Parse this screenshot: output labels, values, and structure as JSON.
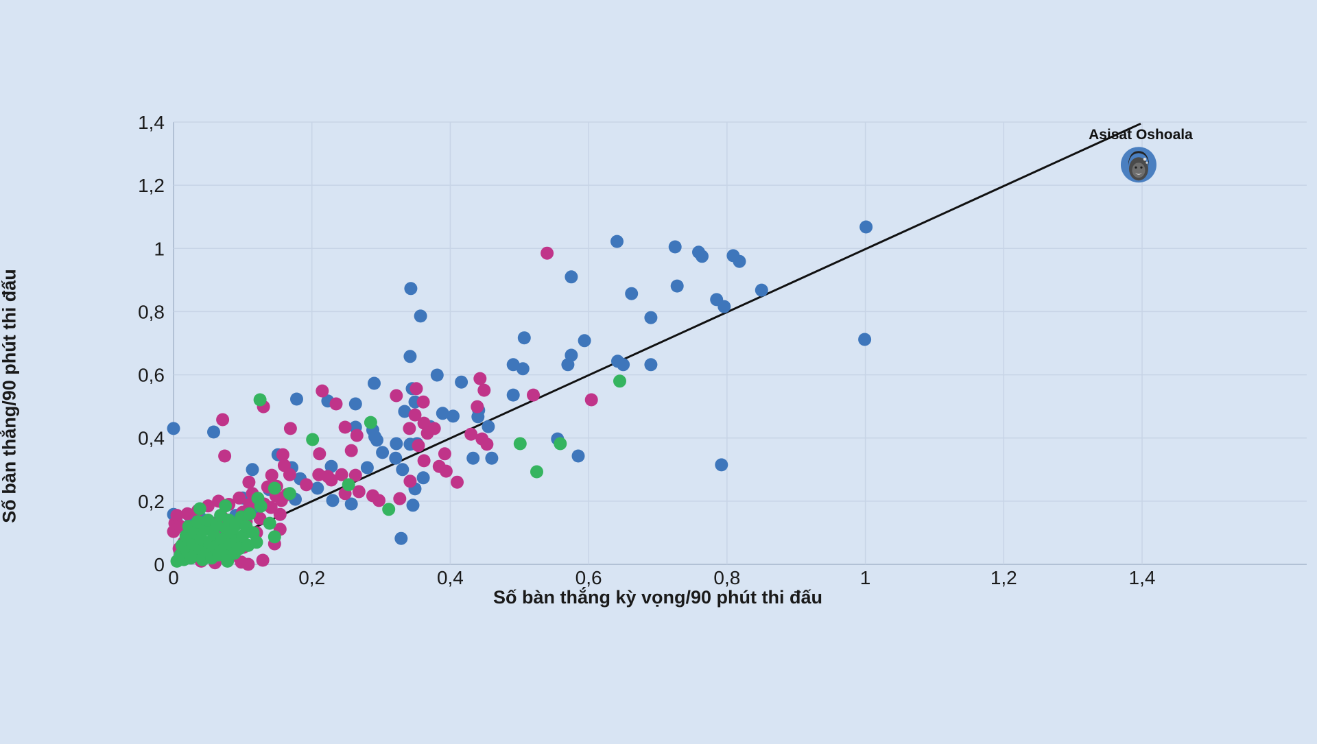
{
  "chart_data": {
    "type": "scatter",
    "title": "",
    "xlabel": "Số bàn thắng kỳ vọng/90 phút thi đấu",
    "ylabel": "Số bàn thắng/90 phút thi đấu",
    "xlim": [
      0,
      1.4
    ],
    "ylim": [
      0,
      1.4
    ],
    "grid": true,
    "background_color": "#d8e4f3",
    "gridline_color": "#c7d4e6",
    "baseline_color": "#a5b5cb",
    "text_color": "#1a1a1a",
    "ticks": {
      "values": [
        0,
        0.2,
        0.4,
        0.6,
        0.8,
        1.0,
        1.2,
        1.4
      ],
      "labels": [
        "0",
        "0,2",
        "0,4",
        "0,6",
        "0,8",
        "1",
        "1,2",
        "1,4"
      ]
    },
    "reference_line": {
      "from": [
        0,
        0
      ],
      "to": [
        1.398,
        1.395
      ],
      "color": "#111111",
      "width": 3
    },
    "annotation": {
      "label": "Asisat Oshoala",
      "x": 1.395,
      "y": 1.265,
      "marker": "circular-photo-avatar",
      "avatar_ring_color": "#4a7fc0"
    },
    "point_radius": 9.5,
    "series": [
      {
        "name": "blue",
        "color": "#3e76bb",
        "points": [
          [
            0.0,
            0.43
          ],
          [
            0.0,
            0.158
          ],
          [
            0.004,
            0.136
          ],
          [
            0.023,
            0.154
          ],
          [
            0.04,
            0.145
          ],
          [
            0.058,
            0.13
          ],
          [
            0.058,
            0.419
          ],
          [
            0.06,
            0.065
          ],
          [
            0.07,
            0.1
          ],
          [
            0.09,
            0.155
          ],
          [
            0.1,
            0.21
          ],
          [
            0.114,
            0.3
          ],
          [
            0.115,
            0.175
          ],
          [
            0.138,
            0.237
          ],
          [
            0.151,
            0.347
          ],
          [
            0.171,
            0.306
          ],
          [
            0.176,
            0.206
          ],
          [
            0.178,
            0.523
          ],
          [
            0.183,
            0.271
          ],
          [
            0.208,
            0.241
          ],
          [
            0.223,
            0.517
          ],
          [
            0.228,
            0.31
          ],
          [
            0.23,
            0.202
          ],
          [
            0.257,
            0.191
          ],
          [
            0.263,
            0.434
          ],
          [
            0.263,
            0.508
          ],
          [
            0.28,
            0.306
          ],
          [
            0.288,
            0.425
          ],
          [
            0.29,
            0.573
          ],
          [
            0.291,
            0.404
          ],
          [
            0.294,
            0.393
          ],
          [
            0.302,
            0.354
          ],
          [
            0.321,
            0.336
          ],
          [
            0.322,
            0.382
          ],
          [
            0.329,
            0.082
          ],
          [
            0.331,
            0.3
          ],
          [
            0.334,
            0.484
          ],
          [
            0.342,
            0.38
          ],
          [
            0.342,
            0.658
          ],
          [
            0.343,
            0.873
          ],
          [
            0.345,
            0.556
          ],
          [
            0.346,
            0.187
          ],
          [
            0.349,
            0.239
          ],
          [
            0.349,
            0.514
          ],
          [
            0.352,
            0.382
          ],
          [
            0.357,
            0.786
          ],
          [
            0.361,
            0.274
          ],
          [
            0.371,
            0.436
          ],
          [
            0.381,
            0.599
          ],
          [
            0.389,
            0.478
          ],
          [
            0.404,
            0.469
          ],
          [
            0.416,
            0.577
          ],
          [
            0.433,
            0.336
          ],
          [
            0.44,
            0.467
          ],
          [
            0.441,
            0.488
          ],
          [
            0.455,
            0.436
          ],
          [
            0.46,
            0.336
          ],
          [
            0.491,
            0.536
          ],
          [
            0.491,
            0.632
          ],
          [
            0.505,
            0.619
          ],
          [
            0.507,
            0.717
          ],
          [
            0.555,
            0.397
          ],
          [
            0.57,
            0.632
          ],
          [
            0.575,
            0.662
          ],
          [
            0.575,
            0.91
          ],
          [
            0.585,
            0.343
          ],
          [
            0.594,
            0.708
          ],
          [
            0.641,
            1.022
          ],
          [
            0.642,
            0.643
          ],
          [
            0.65,
            0.632
          ],
          [
            0.662,
            0.857
          ],
          [
            0.69,
            0.632
          ],
          [
            0.69,
            0.781
          ],
          [
            0.725,
            1.005
          ],
          [
            0.728,
            0.881
          ],
          [
            0.759,
            0.988
          ],
          [
            0.764,
            0.975
          ],
          [
            0.785,
            0.838
          ],
          [
            0.792,
            0.315
          ],
          [
            0.796,
            0.816
          ],
          [
            0.809,
            0.977
          ],
          [
            0.818,
            0.959
          ],
          [
            0.85,
            0.868
          ],
          [
            0.999,
            0.712
          ],
          [
            1.001,
            1.068
          ]
        ]
      },
      {
        "name": "magenta",
        "color": "#c03489",
        "points": [
          [
            0.0,
            0.104
          ],
          [
            0.002,
            0.13
          ],
          [
            0.005,
            0.155
          ],
          [
            0.008,
            0.05
          ],
          [
            0.01,
            0.12
          ],
          [
            0.015,
            0.07
          ],
          [
            0.02,
            0.16
          ],
          [
            0.025,
            0.1
          ],
          [
            0.03,
            0.05
          ],
          [
            0.035,
            0.17
          ],
          [
            0.04,
            0.12
          ],
          [
            0.04,
            0.01
          ],
          [
            0.045,
            0.06
          ],
          [
            0.05,
            0.185
          ],
          [
            0.055,
            0.13
          ],
          [
            0.06,
            0.005
          ],
          [
            0.06,
            0.09
          ],
          [
            0.065,
            0.2
          ],
          [
            0.07,
            0.15
          ],
          [
            0.071,
            0.458
          ],
          [
            0.074,
            0.343
          ],
          [
            0.075,
            0.055
          ],
          [
            0.08,
            0.03
          ],
          [
            0.08,
            0.19
          ],
          [
            0.085,
            0.125
          ],
          [
            0.086,
            0.028
          ],
          [
            0.09,
            0.08
          ],
          [
            0.095,
            0.21
          ],
          [
            0.098,
            0.007
          ],
          [
            0.1,
            0.165
          ],
          [
            0.101,
            0.054
          ],
          [
            0.105,
            0.135
          ],
          [
            0.108,
            0.0
          ],
          [
            0.109,
            0.26
          ],
          [
            0.11,
            0.19
          ],
          [
            0.114,
            0.224
          ],
          [
            0.12,
            0.1
          ],
          [
            0.125,
            0.145
          ],
          [
            0.129,
            0.013
          ],
          [
            0.13,
            0.499
          ],
          [
            0.131,
            0.191
          ],
          [
            0.136,
            0.245
          ],
          [
            0.141,
            0.18
          ],
          [
            0.142,
            0.282
          ],
          [
            0.146,
            0.065
          ],
          [
            0.148,
            0.217
          ],
          [
            0.149,
            0.247
          ],
          [
            0.154,
            0.111
          ],
          [
            0.154,
            0.158
          ],
          [
            0.156,
            0.202
          ],
          [
            0.158,
            0.347
          ],
          [
            0.16,
            0.313
          ],
          [
            0.164,
            0.221
          ],
          [
            0.168,
            0.284
          ],
          [
            0.169,
            0.43
          ],
          [
            0.192,
            0.252
          ],
          [
            0.21,
            0.284
          ],
          [
            0.211,
            0.35
          ],
          [
            0.215,
            0.549
          ],
          [
            0.223,
            0.278
          ],
          [
            0.228,
            0.267
          ],
          [
            0.235,
            0.508
          ],
          [
            0.243,
            0.284
          ],
          [
            0.248,
            0.224
          ],
          [
            0.248,
            0.434
          ],
          [
            0.257,
            0.36
          ],
          [
            0.263,
            0.282
          ],
          [
            0.265,
            0.408
          ],
          [
            0.268,
            0.23
          ],
          [
            0.288,
            0.217
          ],
          [
            0.297,
            0.202
          ],
          [
            0.322,
            0.534
          ],
          [
            0.327,
            0.208
          ],
          [
            0.341,
            0.43
          ],
          [
            0.342,
            0.263
          ],
          [
            0.349,
            0.473
          ],
          [
            0.351,
            0.556
          ],
          [
            0.354,
            0.376
          ],
          [
            0.361,
            0.514
          ],
          [
            0.362,
            0.328
          ],
          [
            0.362,
            0.447
          ],
          [
            0.367,
            0.415
          ],
          [
            0.377,
            0.43
          ],
          [
            0.384,
            0.31
          ],
          [
            0.392,
            0.35
          ],
          [
            0.394,
            0.295
          ],
          [
            0.41,
            0.26
          ],
          [
            0.43,
            0.412
          ],
          [
            0.439,
            0.499
          ],
          [
            0.443,
            0.588
          ],
          [
            0.446,
            0.397
          ],
          [
            0.449,
            0.551
          ],
          [
            0.453,
            0.38
          ],
          [
            0.52,
            0.536
          ],
          [
            0.54,
            0.985
          ],
          [
            0.604,
            0.521
          ]
        ]
      },
      {
        "name": "green",
        "color": "#35b45f",
        "points": [
          [
            0.005,
            0.01
          ],
          [
            0.01,
            0.03
          ],
          [
            0.012,
            0.06
          ],
          [
            0.015,
            0.015
          ],
          [
            0.018,
            0.09
          ],
          [
            0.02,
            0.04
          ],
          [
            0.022,
            0.12
          ],
          [
            0.025,
            0.02
          ],
          [
            0.028,
            0.065
          ],
          [
            0.03,
            0.1
          ],
          [
            0.032,
            0.03
          ],
          [
            0.035,
            0.135
          ],
          [
            0.038,
            0.05
          ],
          [
            0.038,
            0.176
          ],
          [
            0.04,
            0.08
          ],
          [
            0.042,
            0.015
          ],
          [
            0.045,
            0.11
          ],
          [
            0.048,
            0.04
          ],
          [
            0.05,
            0.14
          ],
          [
            0.052,
            0.07
          ],
          [
            0.055,
            0.02
          ],
          [
            0.058,
            0.095
          ],
          [
            0.06,
            0.055
          ],
          [
            0.062,
            0.125
          ],
          [
            0.065,
            0.03
          ],
          [
            0.068,
            0.155
          ],
          [
            0.07,
            0.08
          ],
          [
            0.072,
            0.045
          ],
          [
            0.075,
            0.115
          ],
          [
            0.075,
            0.185
          ],
          [
            0.078,
            0.01
          ],
          [
            0.08,
            0.14
          ],
          [
            0.082,
            0.065
          ],
          [
            0.085,
            0.1
          ],
          [
            0.088,
            0.035
          ],
          [
            0.09,
            0.125
          ],
          [
            0.092,
            0.075
          ],
          [
            0.095,
            0.05
          ],
          [
            0.098,
            0.15
          ],
          [
            0.1,
            0.09
          ],
          [
            0.105,
            0.12
          ],
          [
            0.108,
            0.06
          ],
          [
            0.11,
            0.16
          ],
          [
            0.115,
            0.1
          ],
          [
            0.12,
            0.07
          ],
          [
            0.122,
            0.209
          ],
          [
            0.125,
            0.521
          ],
          [
            0.126,
            0.184
          ],
          [
            0.139,
            0.13
          ],
          [
            0.146,
            0.241
          ],
          [
            0.146,
            0.087
          ],
          [
            0.168,
            0.224
          ],
          [
            0.201,
            0.395
          ],
          [
            0.253,
            0.252
          ],
          [
            0.285,
            0.449
          ],
          [
            0.311,
            0.174
          ],
          [
            0.501,
            0.382
          ],
          [
            0.525,
            0.293
          ],
          [
            0.559,
            0.382
          ],
          [
            0.645,
            0.58
          ]
        ]
      }
    ]
  }
}
